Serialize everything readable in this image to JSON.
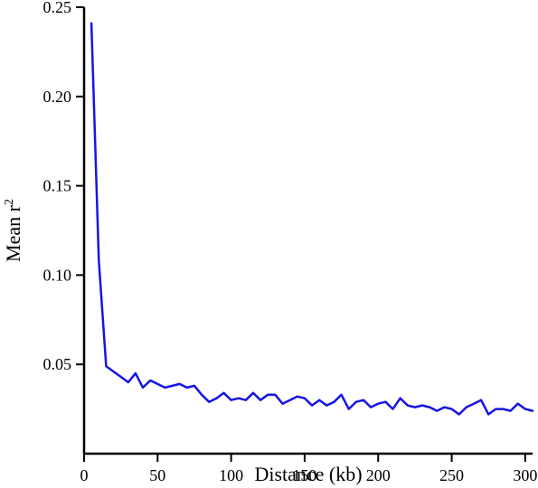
{
  "chart_data": {
    "type": "line",
    "title": "",
    "xlabel": "Distance (kb)",
    "ylabel_main": "Mean r",
    "ylabel_sup": "2",
    "xlim": [
      0,
      305
    ],
    "ylim": [
      0,
      0.25
    ],
    "xticks": [
      0,
      50,
      100,
      150,
      200,
      250,
      300
    ],
    "xtick_labels": [
      "0",
      "50",
      "100",
      "150",
      "200",
      "250",
      "300"
    ],
    "yticks": [
      0.05,
      0.1,
      0.15,
      0.2,
      0.25
    ],
    "ytick_labels": [
      "0.05",
      "0.10",
      "0.15",
      "0.20",
      "0.25"
    ],
    "grid": false,
    "series": [
      {
        "color": "#1515e6",
        "x": [
          5,
          10,
          15,
          20,
          25,
          30,
          35,
          40,
          45,
          50,
          55,
          60,
          65,
          70,
          75,
          80,
          85,
          90,
          95,
          100,
          105,
          110,
          115,
          120,
          125,
          130,
          135,
          140,
          145,
          150,
          155,
          160,
          165,
          170,
          175,
          180,
          185,
          190,
          195,
          200,
          205,
          210,
          215,
          220,
          225,
          230,
          235,
          240,
          245,
          250,
          255,
          260,
          265,
          270,
          275,
          280,
          285,
          290,
          295,
          300,
          305
        ],
        "y": [
          0.241,
          0.108,
          0.049,
          0.046,
          0.043,
          0.04,
          0.045,
          0.037,
          0.041,
          0.039,
          0.037,
          0.038,
          0.039,
          0.037,
          0.038,
          0.033,
          0.029,
          0.031,
          0.034,
          0.03,
          0.031,
          0.03,
          0.034,
          0.03,
          0.033,
          0.033,
          0.028,
          0.03,
          0.032,
          0.031,
          0.027,
          0.03,
          0.027,
          0.029,
          0.033,
          0.025,
          0.029,
          0.03,
          0.026,
          0.028,
          0.029,
          0.025,
          0.031,
          0.027,
          0.026,
          0.027,
          0.026,
          0.024,
          0.026,
          0.025,
          0.022,
          0.026,
          0.028,
          0.03,
          0.022,
          0.025,
          0.025,
          0.024,
          0.028,
          0.025,
          0.024
        ]
      }
    ]
  }
}
